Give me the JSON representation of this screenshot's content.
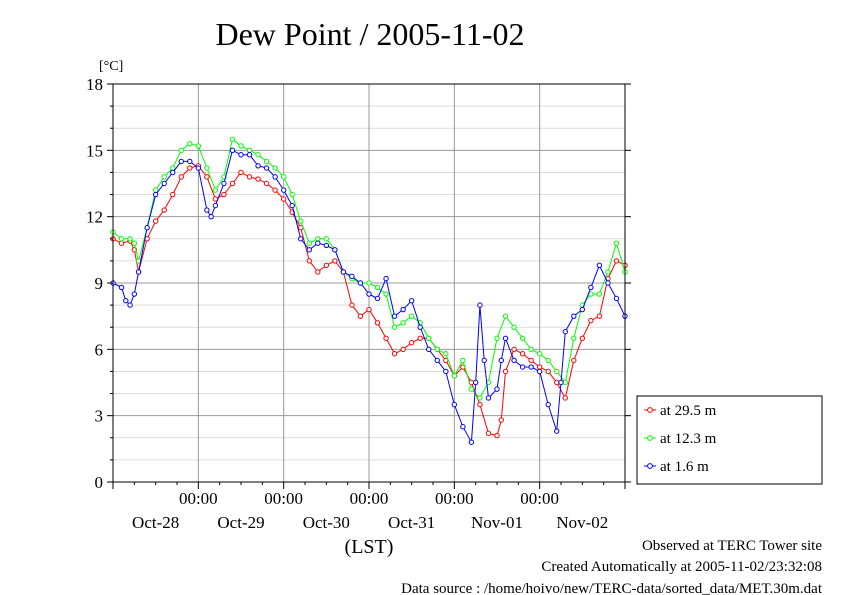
{
  "chart_data": {
    "type": "line",
    "title": "Dew Point / 2005-11-02",
    "ylabel": "[°C]",
    "xlabel": "(LST)",
    "ylim": [
      0,
      18
    ],
    "yticks": [
      "0",
      "3",
      "6",
      "9",
      "12",
      "15",
      "18"
    ],
    "xlim": [
      0,
      6.0
    ],
    "xtick_values": [
      1,
      2,
      3,
      4,
      5
    ],
    "xtick_time_labels": [
      "00:00",
      "00:00",
      "00:00",
      "00:00",
      "00:00"
    ],
    "xtick_date_labels": [
      "Oct-28",
      "Oct-29",
      "Oct-30",
      "Oct-31",
      "Nov-01",
      "Nov-02"
    ],
    "grid": true,
    "legend_position": "right",
    "series": [
      {
        "name": "at 29.5 m",
        "color": "#ff0000",
        "x": [
          0,
          0.1,
          0.2,
          0.25,
          0.3,
          0.4,
          0.5,
          0.6,
          0.7,
          0.8,
          0.9,
          1.0,
          1.1,
          1.2,
          1.3,
          1.4,
          1.5,
          1.6,
          1.7,
          1.8,
          1.9,
          2.0,
          2.1,
          2.2,
          2.3,
          2.4,
          2.5,
          2.6,
          2.7,
          2.8,
          2.9,
          3.0,
          3.1,
          3.2,
          3.3,
          3.4,
          3.5,
          3.6,
          3.7,
          3.8,
          3.9,
          4.0,
          4.1,
          4.2,
          4.3,
          4.4,
          4.5,
          4.55,
          4.6,
          4.7,
          4.8,
          4.9,
          5.0,
          5.1,
          5.2,
          5.3,
          5.4,
          5.5,
          5.6,
          5.7,
          5.8,
          5.9,
          6.0
        ],
        "y": [
          11,
          10.8,
          10.9,
          10.5,
          9.5,
          11,
          11.8,
          12.3,
          13,
          13.8,
          14.2,
          14.3,
          13.8,
          12.8,
          13,
          13.5,
          14,
          13.8,
          13.7,
          13.5,
          13.2,
          12.8,
          12.2,
          11.5,
          10,
          9.5,
          9.8,
          10,
          9.5,
          8,
          7.5,
          7.8,
          7.2,
          6.5,
          5.8,
          6,
          6.3,
          6.5,
          6.5,
          6,
          5.5,
          4.8,
          5.2,
          4.5,
          3.5,
          2.2,
          2.1,
          2.8,
          5,
          6,
          5.8,
          5.5,
          5.2,
          5,
          4.5,
          3.8,
          5.5,
          6.5,
          7.3,
          7.5,
          9.2,
          10,
          9.8
        ]
      },
      {
        "name": "at 12.3 m",
        "color": "#00ff00",
        "x": [
          0,
          0.1,
          0.2,
          0.25,
          0.3,
          0.4,
          0.5,
          0.6,
          0.7,
          0.8,
          0.9,
          1.0,
          1.1,
          1.2,
          1.3,
          1.4,
          1.5,
          1.6,
          1.7,
          1.8,
          1.9,
          2.0,
          2.1,
          2.2,
          2.3,
          2.4,
          2.5,
          2.6,
          2.7,
          2.8,
          2.9,
          3.0,
          3.1,
          3.2,
          3.3,
          3.4,
          3.5,
          3.6,
          3.7,
          3.8,
          3.9,
          4.0,
          4.1,
          4.2,
          4.3,
          4.4,
          4.5,
          4.6,
          4.7,
          4.8,
          4.9,
          5.0,
          5.1,
          5.2,
          5.3,
          5.4,
          5.5,
          5.6,
          5.7,
          5.8,
          5.9,
          6.0
        ],
        "y": [
          11.3,
          11,
          11,
          10.8,
          10,
          11.5,
          13.2,
          13.8,
          14.2,
          15,
          15.3,
          15.2,
          14.2,
          13.2,
          13.8,
          15.5,
          15.2,
          15,
          14.8,
          14.5,
          14.2,
          13.8,
          13,
          11.8,
          10.8,
          11,
          11,
          10.5,
          9.5,
          9.2,
          9,
          9,
          8.8,
          8.5,
          7,
          7.2,
          7.5,
          7.2,
          6.5,
          6,
          5.8,
          4.8,
          5.5,
          4.2,
          3.8,
          4.5,
          6.5,
          7.5,
          7,
          6.5,
          6,
          5.8,
          5.5,
          5,
          4.5,
          6.5,
          8,
          8.5,
          8.5,
          9.5,
          10.8,
          9.5
        ]
      },
      {
        "name": "at 1.6 m",
        "color": "#0000ff",
        "x": [
          0,
          0.1,
          0.15,
          0.2,
          0.25,
          0.3,
          0.4,
          0.5,
          0.6,
          0.7,
          0.8,
          0.9,
          1.0,
          1.1,
          1.15,
          1.2,
          1.3,
          1.4,
          1.5,
          1.6,
          1.7,
          1.8,
          1.9,
          2.0,
          2.1,
          2.2,
          2.3,
          2.4,
          2.5,
          2.6,
          2.7,
          2.8,
          2.9,
          3.0,
          3.1,
          3.2,
          3.3,
          3.4,
          3.5,
          3.6,
          3.7,
          3.8,
          3.9,
          4.0,
          4.1,
          4.2,
          4.25,
          4.3,
          4.35,
          4.4,
          4.5,
          4.55,
          4.6,
          4.7,
          4.8,
          4.9,
          5.0,
          5.1,
          5.2,
          5.25,
          5.3,
          5.4,
          5.5,
          5.6,
          5.7,
          5.8,
          5.9,
          6.0
        ],
        "y": [
          9,
          8.8,
          8.2,
          8,
          8.5,
          9.5,
          11.5,
          13,
          13.5,
          14,
          14.5,
          14.5,
          14.2,
          12.3,
          12,
          12.5,
          13.5,
          15,
          14.8,
          14.8,
          14.3,
          14.2,
          13.8,
          13.2,
          12.5,
          11,
          10.5,
          10.8,
          10.7,
          10.5,
          9.5,
          9.3,
          9,
          8.5,
          8.3,
          9.2,
          7.5,
          7.8,
          8.2,
          7,
          6,
          5.5,
          5,
          3.5,
          2.5,
          1.8,
          4.5,
          8,
          5.5,
          3.8,
          4.2,
          5.5,
          6.5,
          5.5,
          5.2,
          5.2,
          5,
          3.5,
          2.3,
          4.5,
          6.8,
          7.5,
          7.8,
          8.8,
          9.8,
          9,
          8.3,
          7.5
        ]
      }
    ],
    "footer_lines": [
      "Observed at TERC Tower site",
      "Created Automatically at 2005-11-02/23:32:08",
      "Data source : /home/hoivo/new/TERC-data/sorted_data/MET.30m.dat"
    ]
  }
}
